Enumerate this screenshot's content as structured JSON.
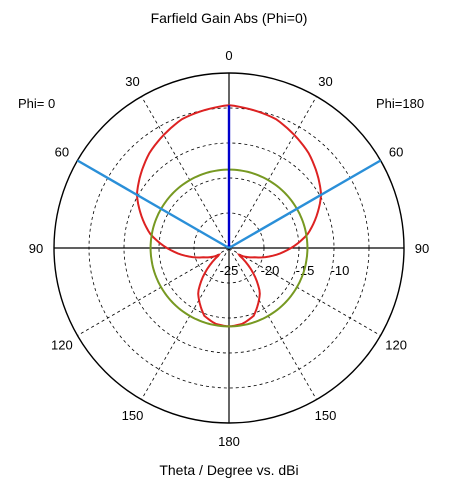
{
  "chart_data": {
    "type": "polar-line",
    "title": "Farfield Gain Abs (Phi=0)",
    "xlabel": "Theta / Degree vs. dBi",
    "side_labels": {
      "left": "Phi=  0",
      "right": "Phi=180"
    },
    "angle_ticks": [
      {
        "label": "0",
        "angle": 0
      },
      {
        "label": "30",
        "angle": 30
      },
      {
        "label": "60",
        "angle": 60
      },
      {
        "label": "90",
        "angle": 90
      },
      {
        "label": "120",
        "angle": 120
      },
      {
        "label": "150",
        "angle": 150
      },
      {
        "label": "180",
        "angle": 180
      },
      {
        "label": "150",
        "angle": 210
      },
      {
        "label": "120",
        "angle": 240
      },
      {
        "label": "90",
        "angle": 270
      },
      {
        "label": "60",
        "angle": 300
      },
      {
        "label": "30",
        "angle": 330
      }
    ],
    "radial_ticks": [
      "-25",
      "-20",
      "-15",
      "-10"
    ],
    "radial_range_dBi": [
      -25,
      0
    ],
    "series": [
      {
        "color": "#dd2222",
        "points": [
          {
            "angle": 0,
            "gain": -4.6
          },
          {
            "angle": 20,
            "gain": -5.4
          },
          {
            "angle": 40,
            "gain": -7.3
          },
          {
            "angle": 60,
            "gain": -9.8
          },
          {
            "angle": 80,
            "gain": -13.6
          },
          {
            "angle": 95,
            "gain": -17.4
          },
          {
            "angle": 110,
            "gain": -21.1
          },
          {
            "angle": 125,
            "gain": -23.4
          },
          {
            "angle": 145,
            "gain": -17.3
          },
          {
            "angle": 160,
            "gain": -14.7
          },
          {
            "angle": 170,
            "gain": -14.0
          },
          {
            "angle": 180,
            "gain": -13.8
          }
        ]
      },
      {
        "color": "#779922",
        "points": [
          {
            "angle": 0,
            "gain": -13.8
          },
          {
            "angle": 90,
            "gain": -13.8
          },
          {
            "angle": 180,
            "gain": -13.8
          }
        ]
      }
    ],
    "markers": [
      {
        "color": "#0000cc",
        "angle": 0,
        "gain": -4.6
      },
      {
        "color": "#2a8fd8",
        "angle": 60,
        "gain": 0
      },
      {
        "color": "#2a8fd8",
        "angle": 300,
        "gain": 0
      }
    ]
  }
}
